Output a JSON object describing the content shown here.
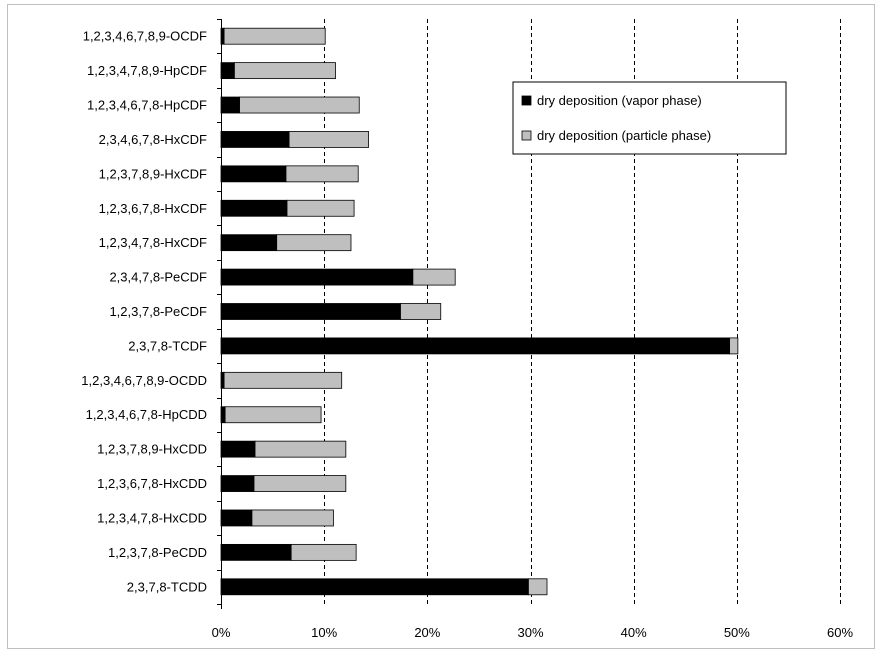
{
  "chart_data": {
    "type": "bar",
    "orientation": "horizontal",
    "stacked": true,
    "title": "",
    "xlabel": "",
    "ylabel": "",
    "xlim": [
      0,
      60
    ],
    "x_ticks": [
      "0%",
      "10%",
      "20%",
      "30%",
      "40%",
      "50%",
      "60%"
    ],
    "grid": "vertical dashed",
    "legend_position": "top-right",
    "categories": [
      "1,2,3,4,6,7,8,9-OCDF",
      "1,2,3,4,7,8,9-HpCDF",
      "1,2,3,4,6,7,8-HpCDF",
      "2,3,4,6,7,8-HxCDF",
      "1,2,3,7,8,9-HxCDF",
      "1,2,3,6,7,8-HxCDF",
      "1,2,3,4,7,8-HxCDF",
      "2,3,4,7,8-PeCDF",
      "1,2,3,7,8-PeCDF",
      "2,3,7,8-TCDF",
      "1,2,3,4,6,7,8,9-OCDD",
      "1,2,3,4,6,7,8-HpCDD",
      "1,2,3,7,8,9-HxCDD",
      "1,2,3,6,7,8-HxCDD",
      "1,2,3,4,7,8-HxCDD",
      "1,2,3,7,8-PeCDD",
      "2,3,7,8-TCDD"
    ],
    "series": [
      {
        "name": "dry deposition (vapor phase)",
        "color": "#000000",
        "values": [
          0.3,
          1.3,
          1.8,
          6.6,
          6.3,
          6.4,
          5.4,
          18.6,
          17.4,
          49.3,
          0.3,
          0.4,
          3.3,
          3.2,
          3.0,
          6.8,
          29.8
        ]
      },
      {
        "name": "dry deposition (particle phase)",
        "color": "#bfbfbf",
        "values": [
          9.8,
          9.8,
          11.6,
          7.7,
          7.0,
          6.5,
          7.2,
          4.1,
          3.9,
          0.8,
          11.4,
          9.3,
          8.8,
          8.9,
          7.9,
          6.3,
          1.8
        ]
      }
    ]
  }
}
